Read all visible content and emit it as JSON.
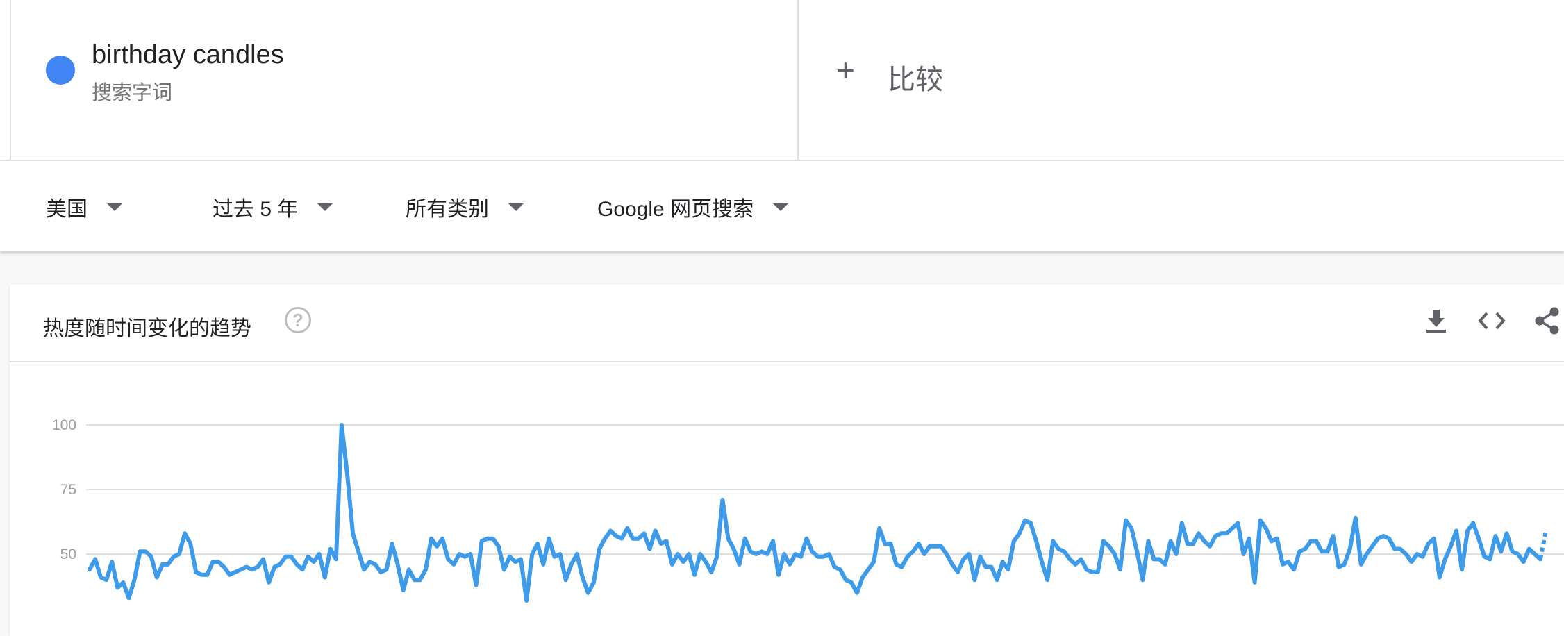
{
  "search_term": {
    "name": "birthday candles",
    "type_label": "搜索字词",
    "color": "#4285f4"
  },
  "compare": {
    "plus": "+",
    "label": "比较"
  },
  "filters": {
    "region": "美国",
    "time_range": "过去 5 年",
    "category": "所有类别",
    "search_type": "Google 网页搜索"
  },
  "card": {
    "title": "热度随时间变化的趋势",
    "help_glyph": "?",
    "tools": [
      "download-icon",
      "embed-icon",
      "share-icon"
    ]
  },
  "chart_data": {
    "type": "line",
    "title": "热度随时间变化的趋势",
    "xlabel": "",
    "ylabel": "",
    "ylim": [
      0,
      100
    ],
    "yticks": [
      50,
      75,
      100
    ],
    "grid": true,
    "series_color": "#3d9be9",
    "partial_last_segment": true,
    "values": [
      44,
      48,
      41,
      40,
      47,
      37,
      39,
      33,
      40,
      51,
      51,
      49,
      41,
      46,
      46,
      49,
      50,
      58,
      54,
      43,
      42,
      42,
      47,
      47,
      45,
      42,
      43,
      44,
      45,
      44,
      45,
      48,
      39,
      45,
      46,
      49,
      49,
      46,
      44,
      49,
      47,
      50,
      41,
      52,
      48,
      100,
      81,
      58,
      51,
      44,
      47,
      46,
      43,
      44,
      54,
      46,
      36,
      44,
      40,
      40,
      44,
      56,
      53,
      56,
      48,
      46,
      50,
      49,
      50,
      38,
      55,
      56,
      56,
      53,
      44,
      49,
      47,
      48,
      32,
      50,
      54,
      46,
      56,
      49,
      50,
      40,
      46,
      50,
      41,
      35,
      39,
      52,
      56,
      59,
      57,
      56,
      60,
      56,
      56,
      58,
      52,
      59,
      54,
      55,
      46,
      50,
      47,
      50,
      42,
      50,
      47,
      43,
      49,
      71,
      56,
      52,
      46,
      56,
      51,
      50,
      51,
      50,
      55,
      42,
      50,
      46,
      50,
      49,
      56,
      51,
      49,
      49,
      50,
      45,
      44,
      40,
      39,
      35,
      41,
      44,
      47,
      60,
      54,
      54,
      46,
      45,
      49,
      51,
      54,
      50,
      53,
      53,
      53,
      50,
      46,
      43,
      48,
      50,
      40,
      49,
      45,
      45,
      40,
      47,
      44,
      55,
      58,
      63,
      62,
      55,
      47,
      40,
      55,
      52,
      51,
      48,
      46,
      48,
      44,
      43,
      43,
      55,
      53,
      50,
      44,
      63,
      60,
      51,
      40,
      55,
      48,
      48,
      46,
      55,
      50,
      62,
      54,
      54,
      58,
      55,
      53,
      57,
      58,
      58,
      60,
      62,
      50,
      56,
      39,
      63,
      60,
      55,
      56,
      46,
      47,
      44,
      51,
      52,
      55,
      55,
      51,
      51,
      57,
      45,
      46,
      52,
      64,
      46,
      50,
      53,
      56,
      57,
      56,
      52,
      52,
      50,
      47,
      50,
      49,
      54,
      56,
      41,
      48,
      53,
      59,
      44,
      59,
      62,
      56,
      49,
      48,
      57,
      51,
      58,
      51,
      50,
      47,
      52,
      50,
      48,
      59
    ]
  }
}
